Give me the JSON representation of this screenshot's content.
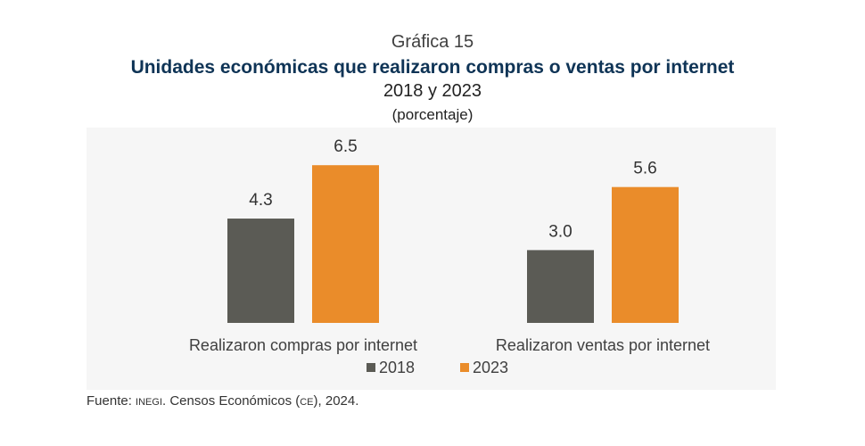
{
  "header": {
    "label": "Gráfica 15",
    "title": "Unidades económicas que realizaron compras o ventas por internet",
    "subtitle": "2018 y 2023",
    "unit": "(porcentaje)"
  },
  "chart_data": {
    "type": "bar",
    "categories": [
      "Realizaron compras por internet",
      "Realizaron ventas por internet"
    ],
    "series": [
      {
        "name": "2018",
        "values": [
          4.3,
          3.0
        ],
        "color": "#5b5b55"
      },
      {
        "name": "2023",
        "values": [
          6.5,
          5.6
        ],
        "color": "#ea8c2a"
      }
    ],
    "value_labels": [
      [
        "4.3",
        "3.0"
      ],
      [
        "6.5",
        "5.6"
      ]
    ],
    "ylim": [
      0,
      7
    ],
    "grid": false,
    "legend_position": "bottom"
  },
  "source": {
    "prefix": "Fuente: ",
    "org": "INEGI",
    "mid": ". Censos Económicos (",
    "abbr": "CE",
    "suffix": "), 2024."
  }
}
